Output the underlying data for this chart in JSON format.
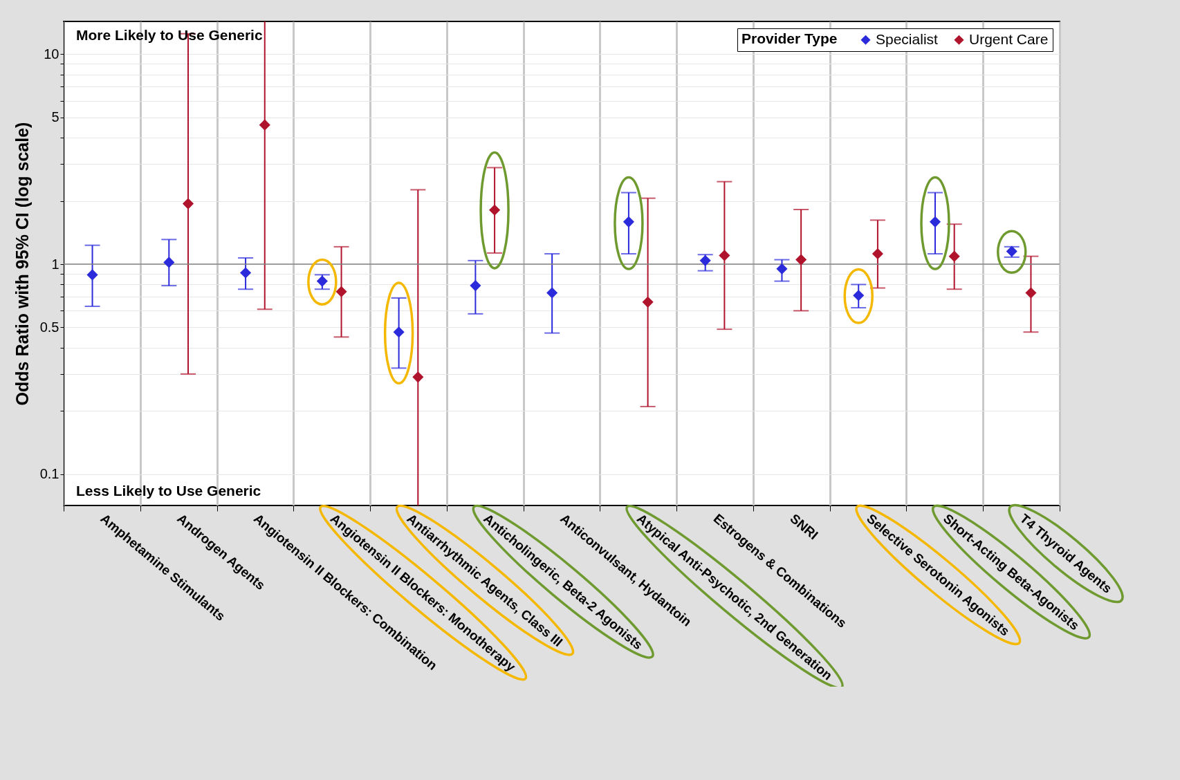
{
  "chart_data": {
    "type": "scatter",
    "categories": [
      "Amphetamine Stimulants",
      "Androgen Agents",
      "Angiotensin II Blockers: Combination",
      "Angiotensin II Blockers: Monotherapy",
      "Antiarrhythmic Agents, Class III",
      "Anticholingeric, Beta-2 Agonists",
      "Anticonvulsant, Hydantoin",
      "Atypical Anti-Psychotic, 2nd Generation",
      "Estrogens & Combinations",
      "SNRI",
      "Selective Serotonin Agonists",
      "Short-Acting Beta-Agonists",
      "T4 Thyroid Agents"
    ],
    "series": [
      {
        "name": "Specialist",
        "color": "#2b2bdc",
        "values": [
          0.89,
          1.02,
          0.91,
          0.83,
          0.475,
          0.79,
          0.73,
          1.59,
          1.04,
          0.95,
          0.71,
          1.59,
          1.15
        ],
        "errors": [
          [
            0.63,
            1.23
          ],
          [
            0.79,
            1.31
          ],
          [
            0.76,
            1.07
          ],
          [
            0.76,
            0.89
          ],
          [
            0.32,
            0.69
          ],
          [
            0.58,
            1.04
          ],
          [
            0.47,
            1.12
          ],
          [
            1.12,
            2.19
          ],
          [
            0.93,
            1.11
          ],
          [
            0.83,
            1.05
          ],
          [
            0.62,
            0.8
          ],
          [
            1.12,
            2.19
          ],
          [
            1.08,
            1.21
          ]
        ]
      },
      {
        "name": "Urgent Care",
        "color": "#b0142c",
        "values": [
          null,
          1.94,
          4.6,
          0.74,
          0.29,
          1.81,
          null,
          0.66,
          1.1,
          1.05,
          1.12,
          1.09,
          0.73
        ],
        "errors": [
          null,
          [
            0.3,
            12.5
          ],
          [
            0.61,
            14.3
          ],
          [
            0.45,
            1.21
          ],
          [
            0.071,
            2.26
          ],
          [
            1.13,
            2.88
          ],
          null,
          [
            0.21,
            2.06
          ],
          [
            0.49,
            2.47
          ],
          [
            0.6,
            1.82
          ],
          [
            0.77,
            1.62
          ],
          [
            0.76,
            1.55
          ],
          [
            0.475,
            1.09
          ]
        ]
      }
    ],
    "ylabel": "Odds Ratio with 95% CI (log scale)",
    "legend_title": "Provider Type",
    "log": true,
    "ylim": [
      0.071,
      14.3
    ],
    "yticks": [
      0.1,
      {
        "value": 0.2,
        "label": null
      },
      {
        "value": 0.3,
        "label": null
      },
      {
        "value": 0.4,
        "label": null
      },
      0.5,
      {
        "value": 0.6,
        "label": null
      },
      {
        "value": 0.7,
        "label": null
      },
      {
        "value": 0.8,
        "label": null
      },
      {
        "value": 0.9,
        "label": null
      },
      1,
      {
        "value": 2,
        "label": null
      },
      {
        "value": 3,
        "label": null
      },
      {
        "value": 4,
        "label": null
      },
      5,
      {
        "value": 6,
        "label": null
      },
      {
        "value": 7,
        "label": null
      },
      {
        "value": 8,
        "label": null
      },
      {
        "value": 9,
        "label": null
      },
      10
    ],
    "ref_lines": [
      {
        "axis": "y",
        "value": 1,
        "color": "#808080"
      }
    ],
    "annotations": [
      "More Likely to Use Generic",
      "Less Likely to Use Generic"
    ],
    "grid": true,
    "legend": "top right",
    "marker": "diamond"
  }
}
